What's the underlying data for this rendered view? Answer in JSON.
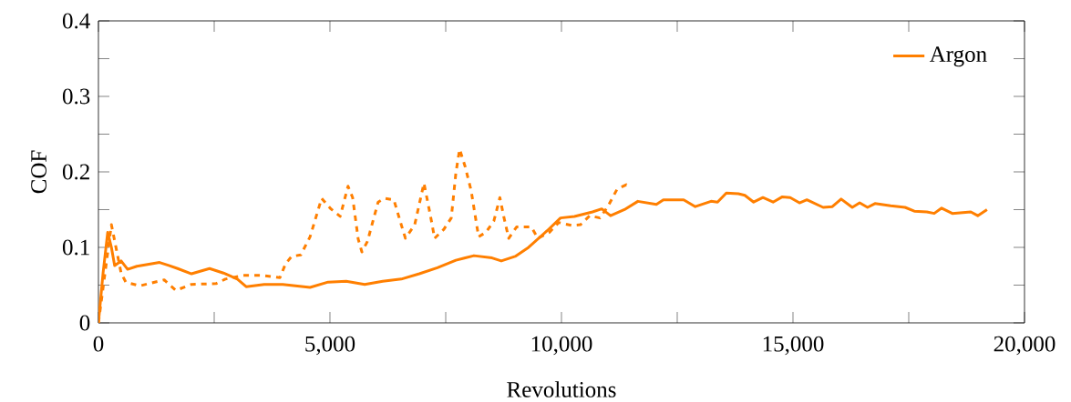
{
  "chart_data": {
    "type": "line",
    "xlabel": "Revolutions",
    "ylabel": "COF",
    "xlim": [
      0,
      20000
    ],
    "ylim": [
      0,
      0.4
    ],
    "xticks": [
      {
        "value": 0,
        "label": "0"
      },
      {
        "value": 2500,
        "label": null
      },
      {
        "value": 5000,
        "label": "5,000"
      },
      {
        "value": 7500,
        "label": null
      },
      {
        "value": 10000,
        "label": "10,000"
      },
      {
        "value": 12500,
        "label": null
      },
      {
        "value": 15000,
        "label": "15,000"
      },
      {
        "value": 17500,
        "label": null
      },
      {
        "value": 20000,
        "label": "20,000"
      }
    ],
    "yticks": [
      0,
      {
        "value": 0.05,
        "label": null
      },
      0.1,
      {
        "value": 0.15,
        "label": null
      },
      0.2,
      {
        "value": 0.25,
        "label": null
      },
      0.3,
      {
        "value": 0.35,
        "label": null
      },
      0.4
    ],
    "legend": "top right",
    "marker": "none",
    "grid": false,
    "series": [
      {
        "name": "Argon",
        "color": "#ff7f00",
        "line_style": "solid",
        "x": [
          0,
          100,
          200,
          280,
          350,
          490,
          630,
          830,
          1120,
          1320,
          1520,
          1710,
          2010,
          2400,
          2700,
          3000,
          3190,
          3580,
          3980,
          4570,
          4960,
          5350,
          5750,
          6140,
          6540,
          6930,
          7320,
          7720,
          8110,
          8500,
          8700,
          9000,
          9290,
          9690,
          9980,
          10280,
          10670,
          10870,
          11060,
          11360,
          11650,
          12050,
          12200,
          12640,
          12890,
          13230,
          13370,
          13560,
          13820,
          13960,
          14150,
          14350,
          14570,
          14770,
          14940,
          15140,
          15300,
          15650,
          15850,
          16040,
          16280,
          16440,
          16610,
          16770,
          17110,
          17420,
          17620,
          17890,
          18050,
          18210,
          18440,
          18840,
          18990,
          19190
        ],
        "values": [
          0,
          0.066,
          0.12,
          0.1,
          0.076,
          0.082,
          0.071,
          0.075,
          0.078,
          0.08,
          0.076,
          0.072,
          0.065,
          0.072,
          0.066,
          0.058,
          0.048,
          0.051,
          0.051,
          0.047,
          0.054,
          0.055,
          0.051,
          0.055,
          0.058,
          0.065,
          0.073,
          0.083,
          0.089,
          0.086,
          0.082,
          0.088,
          0.1,
          0.122,
          0.139,
          0.141,
          0.147,
          0.151,
          0.142,
          0.15,
          0.161,
          0.157,
          0.163,
          0.163,
          0.154,
          0.161,
          0.16,
          0.172,
          0.171,
          0.169,
          0.16,
          0.166,
          0.16,
          0.167,
          0.166,
          0.159,
          0.163,
          0.153,
          0.154,
          0.164,
          0.153,
          0.159,
          0.153,
          0.158,
          0.155,
          0.153,
          0.148,
          0.147,
          0.145,
          0.152,
          0.145,
          0.147,
          0.142,
          0.15
        ]
      },
      {
        "color": "#ff7f00",
        "line_style": "dashed",
        "x": [
          0,
          280,
          490,
          590,
          890,
          1420,
          1670,
          2010,
          2540,
          2740,
          3130,
          3520,
          3920,
          4040,
          4170,
          4370,
          4570,
          4820,
          5020,
          5220,
          5390,
          5490,
          5610,
          5690,
          5810,
          6040,
          6180,
          6380,
          6540,
          6630,
          6830,
          7030,
          7170,
          7260,
          7460,
          7620,
          7720,
          7800,
          7920,
          8050,
          8210,
          8370,
          8540,
          8670,
          8760,
          8860,
          9030,
          9230,
          9350,
          9490,
          9740,
          9940,
          10220,
          10410,
          10610,
          10830,
          11000,
          11200,
          11400,
          11460
        ],
        "values": [
          0,
          0.13,
          0.066,
          0.054,
          0.049,
          0.057,
          0.043,
          0.051,
          0.052,
          0.058,
          0.063,
          0.063,
          0.06,
          0.078,
          0.088,
          0.09,
          0.114,
          0.165,
          0.151,
          0.141,
          0.181,
          0.166,
          0.111,
          0.094,
          0.108,
          0.16,
          0.165,
          0.163,
          0.13,
          0.112,
          0.13,
          0.185,
          0.142,
          0.112,
          0.124,
          0.139,
          0.199,
          0.23,
          0.207,
          0.175,
          0.114,
          0.12,
          0.135,
          0.166,
          0.139,
          0.112,
          0.127,
          0.127,
          0.127,
          0.112,
          0.12,
          0.133,
          0.129,
          0.13,
          0.142,
          0.139,
          0.154,
          0.177,
          0.183,
          0.179
        ]
      }
    ]
  }
}
